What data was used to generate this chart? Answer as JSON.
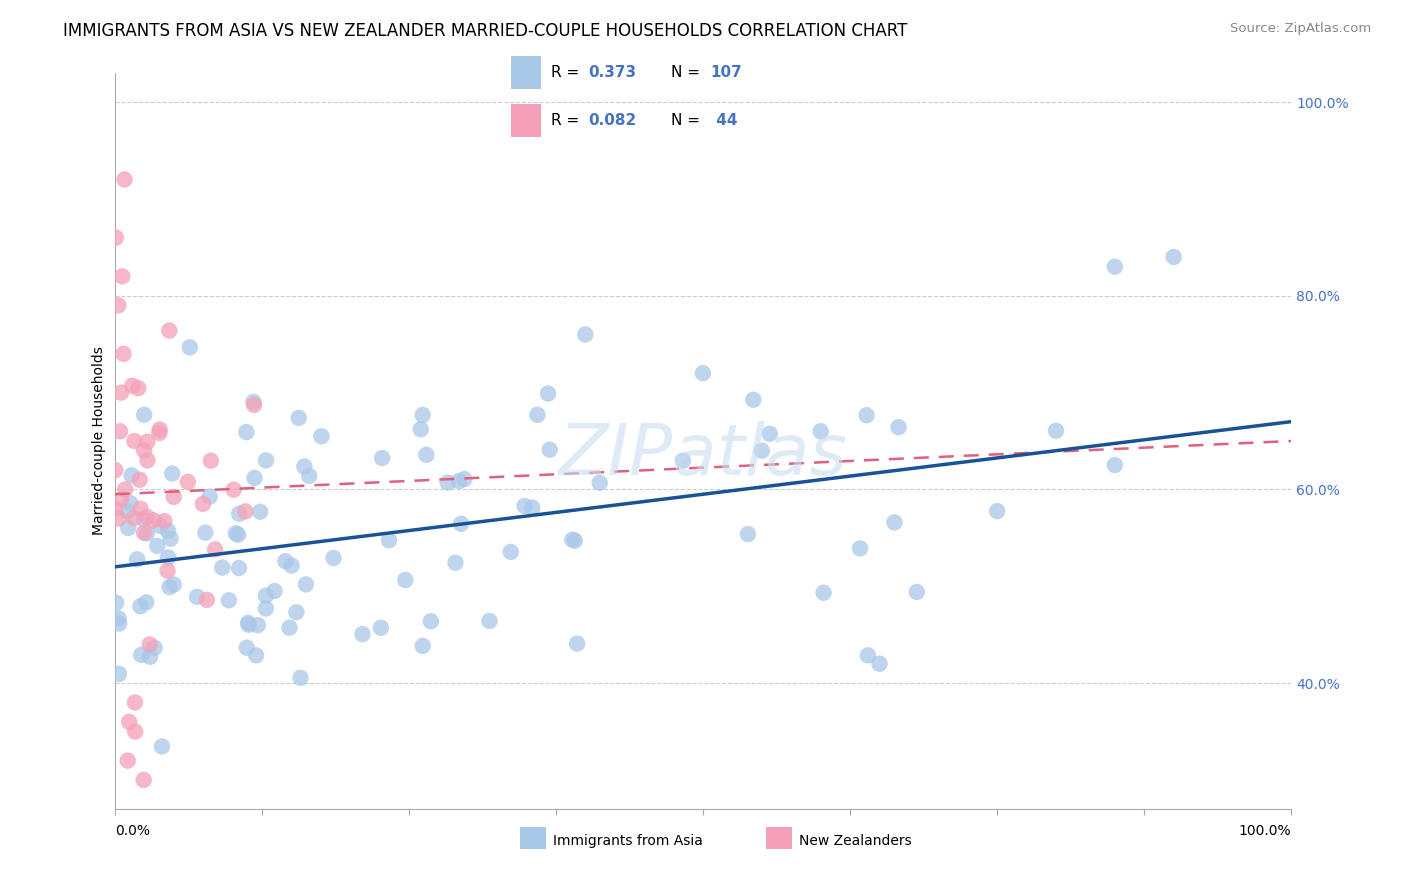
{
  "title": "IMMIGRANTS FROM ASIA VS NEW ZEALANDER MARRIED-COUPLE HOUSEHOLDS CORRELATION CHART",
  "source": "Source: ZipAtlas.com",
  "ylabel": "Married-couple Households",
  "watermark": "ZIPatlas",
  "blue_R": 0.373,
  "blue_N": 107,
  "pink_R": 0.082,
  "pink_N": 44,
  "blue_color": "#a8c8e8",
  "pink_color": "#f4a0b8",
  "blue_line_color": "#1a5296",
  "pink_line_color": "#e06080",
  "grid_color": "#cccccc",
  "grid_style": "--",
  "bg_color": "#ffffff",
  "legend_box_color_blue": "#a8c8e8",
  "legend_box_color_pink": "#f4a0b8",
  "title_fontsize": 12,
  "source_fontsize": 9.5,
  "axis_label_fontsize": 10,
  "tick_fontsize": 10,
  "watermark_color": "#c8dff0",
  "watermark_fontsize": 52,
  "blue_line_start_y": 52.0,
  "blue_line_end_y": 67.0,
  "pink_line_start_y": 59.5,
  "pink_line_end_y": 65.0,
  "ytick_vals": [
    40,
    60,
    80,
    100
  ],
  "ylim_low": 27,
  "ylim_high": 103,
  "xlim_low": 0,
  "xlim_high": 100
}
